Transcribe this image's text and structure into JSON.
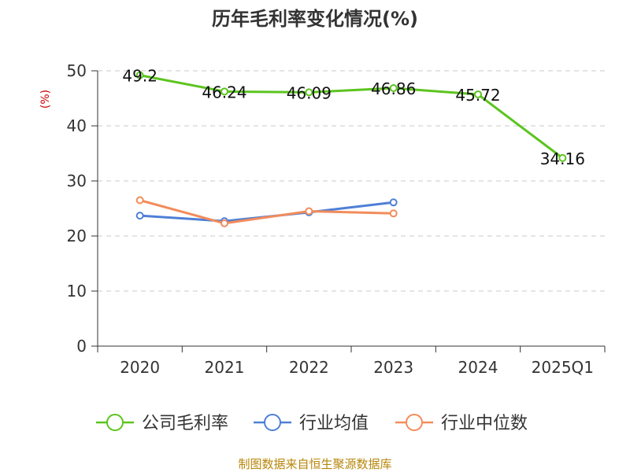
{
  "chart_data": {
    "type": "line",
    "title": "历年毛利率变化情况(%)",
    "unit_label": "(%)",
    "categories": [
      "2020",
      "2021",
      "2022",
      "2023",
      "2024",
      "2025Q1"
    ],
    "ylim": [
      0,
      50
    ],
    "yticks": [
      0,
      10,
      20,
      30,
      40,
      50
    ],
    "grid": true,
    "legend_position": "bottom",
    "series": [
      {
        "name": "公司毛利率",
        "color": "#5cc41f",
        "values": [
          49.2,
          46.24,
          46.09,
          46.86,
          45.72,
          34.16
        ],
        "labels": [
          "49.2",
          "46.24",
          "46.09",
          "46.86",
          "45.72",
          "34.16"
        ]
      },
      {
        "name": "行业均值",
        "color": "#4f7fd6",
        "values": [
          23.7,
          22.7,
          24.3,
          26.1,
          null,
          null
        ]
      },
      {
        "name": "行业中位数",
        "color": "#f28c5b",
        "values": [
          26.5,
          22.3,
          24.5,
          24.1,
          null,
          null
        ]
      }
    ]
  },
  "source": "制图数据来自恒生聚源数据库"
}
